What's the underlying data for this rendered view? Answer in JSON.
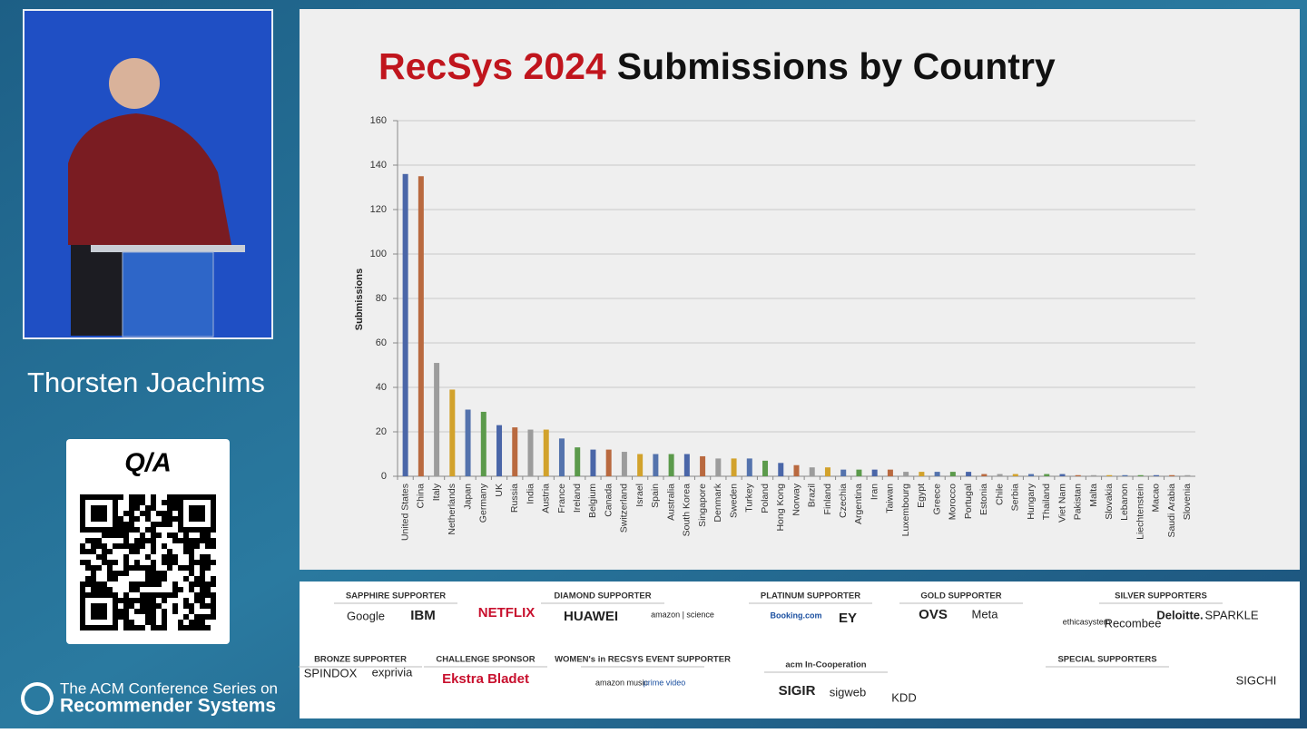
{
  "speaker": "Thorsten Joachims",
  "qr_label": "Q/A",
  "series_name": [
    "The ACM Conference Series on",
    "Recommender Systems"
  ],
  "chart_data": {
    "type": "bar",
    "title": [
      "RecSys 2024",
      "Submissions by Country"
    ],
    "y_label": "Submissions",
    "categories": [
      "United States",
      "China",
      "Italy",
      "Netherlands",
      "Japan",
      "Germany",
      "UK",
      "Russia",
      "India",
      "Austria",
      "France",
      "Ireland",
      "Belgium",
      "Canada",
      "Switzerland",
      "Israel",
      "Spain",
      "Australia",
      "South Korea",
      "Singapore",
      "Denmark",
      "Sweden",
      "Turkey",
      "Poland",
      "Hong Kong",
      "Norway",
      "Brazil",
      "Finland",
      "Czechia",
      "Argentina",
      "Iran",
      "Taiwan",
      "Luxembourg",
      "Egypt",
      "Greece",
      "Morocco",
      "Portugal",
      "Estonia",
      "Chile",
      "Serbia",
      "Hungary",
      "Thailand",
      "Viet Nam",
      "Pakistan",
      "Malta",
      "Slovakia",
      "Lebanon",
      "Liechtenstein",
      "Macao",
      "Saudi Arabia",
      "Slovenia"
    ],
    "values": [
      136,
      135,
      51,
      39,
      30,
      29,
      23,
      22,
      21,
      21,
      17,
      13,
      12,
      12,
      11,
      10,
      10,
      10,
      10,
      9,
      8,
      8,
      8,
      7,
      6,
      5,
      4,
      4,
      3,
      3,
      3,
      3,
      2,
      2,
      2,
      2,
      2,
      1,
      1,
      1,
      1,
      1,
      1,
      0.5,
      0.5,
      0.5,
      0.5,
      0.5,
      0.5,
      0.5,
      0.5
    ],
    "colors": [
      "#4a66a8",
      "#b9693f",
      "#9c9c9c",
      "#d2a22c",
      "#5473ad",
      "#5b9a4b"
    ],
    "ylim": [
      0,
      160
    ],
    "yticks": [
      0,
      20,
      40,
      60,
      80,
      100,
      120,
      140,
      160
    ],
    "grid": true
  },
  "sponsors": [
    {
      "heading": "SAPPHIRE SUPPORTER",
      "names": [
        "Google",
        "IBM"
      ]
    },
    {
      "heading": "DIAMOND SUPPORTER",
      "names": [
        "NETFLIX",
        "HUAWEI",
        "amazon | science"
      ]
    },
    {
      "heading": "PLATINUM SUPPORTER",
      "names": [
        "Booking.com",
        "EY"
      ]
    },
    {
      "heading": "GOLD SUPPORTER",
      "names": [
        "OVS",
        "Meta"
      ]
    },
    {
      "heading": "SILVER SUPPORTERS",
      "names": [
        "ethicasystem",
        "Recombee",
        "Deloitte.",
        "SPARKLE"
      ]
    },
    {
      "heading": "BRONZE SUPPORTER",
      "names": [
        "SPINDOX",
        "exprivia"
      ]
    },
    {
      "heading": "CHALLENGE SPONSOR",
      "names": [
        "Ekstra Bladet"
      ]
    },
    {
      "heading": "WOMEN's in RECSYS EVENT SUPPORTER",
      "names": [
        "amazon music",
        "prime video"
      ]
    },
    {
      "heading": "acm In-Cooperation",
      "names": [
        "SIGIR",
        "sigweb",
        "KDD"
      ]
    },
    {
      "heading": "SPECIAL SUPPORTERS",
      "names": [
        "SIGCHI"
      ]
    }
  ]
}
